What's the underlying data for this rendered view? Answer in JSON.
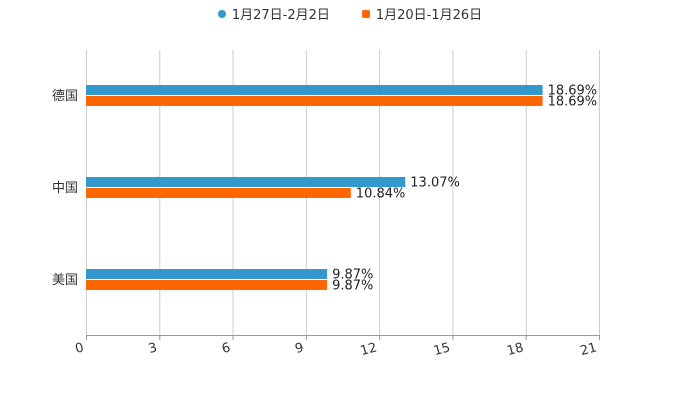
{
  "chart_data": {
    "type": "bar",
    "orientation": "horizontal",
    "categories": [
      "德国",
      "中国",
      "美国"
    ],
    "series": [
      {
        "name": "1月27日-2月2日",
        "color": "#3399cc",
        "values": [
          18.69,
          13.07,
          9.87
        ],
        "labels": [
          "18.69%",
          "13.07%",
          "9.87%"
        ]
      },
      {
        "name": "1月20日-1月26日",
        "color": "#ff6600",
        "values": [
          18.69,
          10.84,
          9.87
        ],
        "labels": [
          "18.69%",
          "10.84%",
          "9.87%"
        ]
      }
    ],
    "xlim": [
      0,
      21
    ],
    "xticks": [
      "0",
      "3",
      "6",
      "9",
      "12",
      "15",
      "18",
      "21"
    ],
    "grid": true,
    "legend_position": "top-center"
  }
}
